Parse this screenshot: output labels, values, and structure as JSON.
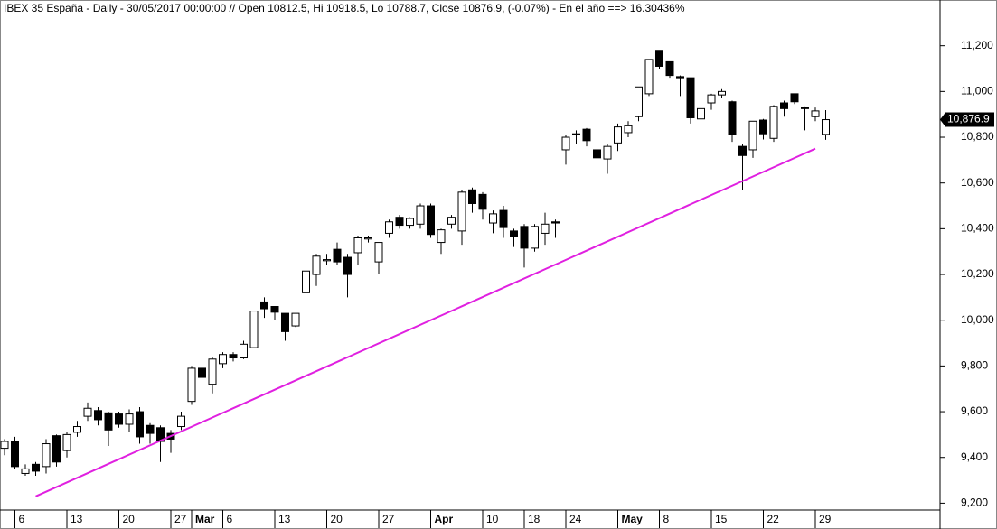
{
  "chart_data": {
    "type": "candlestick",
    "title": "IBEX 35 España - Daily - 30/05/2017 00:00:00 // Open 10812.5, Hi 10918.5, Lo 10788.7, Close 10876.9, (-0.07%) - En el año ==> 16.30436%",
    "categories": [
      null,
      "6",
      null,
      null,
      null,
      null,
      "13",
      null,
      null,
      null,
      null,
      "20",
      null,
      null,
      null,
      null,
      "27",
      null,
      "Mar",
      null,
      null,
      "6",
      null,
      null,
      null,
      null,
      "13",
      null,
      null,
      null,
      null,
      "20",
      null,
      null,
      null,
      null,
      "27",
      null,
      null,
      null,
      null,
      "Apr",
      null,
      null,
      null,
      null,
      "10",
      null,
      null,
      null,
      "18",
      null,
      null,
      null,
      "24",
      null,
      null,
      null,
      null,
      "May",
      null,
      null,
      null,
      "8",
      null,
      null,
      null,
      null,
      "15",
      null,
      null,
      null,
      null,
      "22",
      null,
      null,
      null,
      null,
      "29",
      null
    ],
    "open": [
      9440,
      9470,
      9330,
      9370,
      9360,
      9495,
      9430,
      9510,
      9580,
      9605,
      9595,
      9590,
      9545,
      9600,
      9540,
      9530,
      9505,
      9535,
      9645,
      9790,
      9720,
      9810,
      9850,
      9835,
      9880,
      10080,
      10060,
      10030,
      9975,
      10120,
      10200,
      10260,
      10310,
      10275,
      10295,
      10355,
      10255,
      10380,
      10450,
      10415,
      10420,
      10500,
      10340,
      10420,
      10390,
      10570,
      10550,
      10425,
      10480,
      10390,
      10410,
      10315,
      10380,
      10430,
      10745,
      10815,
      10835,
      10745,
      10705,
      10775,
      10820,
      10890,
      10990,
      11180,
      11130,
      11065,
      11060,
      10880,
      10950,
      10985,
      10955,
      10760,
      10745,
      10875,
      10795,
      10950,
      10990,
      10930,
      10890,
      10812.5
    ],
    "high": [
      9480,
      9490,
      9370,
      9380,
      9480,
      9500,
      9510,
      9560,
      9640,
      9620,
      9600,
      9600,
      9610,
      9620,
      9550,
      9540,
      9520,
      9600,
      9800,
      9800,
      9840,
      9860,
      9860,
      9910,
      10040,
      10100,
      10060,
      10030,
      10030,
      10220,
      10290,
      10290,
      10340,
      10290,
      10370,
      10370,
      10340,
      10440,
      10460,
      10450,
      10510,
      10510,
      10400,
      10460,
      10570,
      10580,
      10560,
      10480,
      10500,
      10400,
      10420,
      10420,
      10470,
      10440,
      10810,
      10830,
      10840,
      10760,
      10770,
      10860,
      10870,
      11020,
      11140,
      11180,
      11130,
      11070,
      11060,
      10940,
      10990,
      11010,
      10960,
      10770,
      10870,
      10880,
      10940,
      10960,
      10990,
      10935,
      10930,
      10918.5
    ],
    "low": [
      9410,
      9350,
      9320,
      9320,
      9330,
      9360,
      9400,
      9490,
      9560,
      9540,
      9450,
      9530,
      9510,
      9460,
      9460,
      9380,
      9420,
      9520,
      9630,
      9740,
      9680,
      9790,
      9820,
      9830,
      9880,
      10010,
      10000,
      9910,
      9970,
      10080,
      10150,
      10240,
      10240,
      10100,
      10240,
      10340,
      10200,
      10360,
      10400,
      10400,
      10400,
      10360,
      10290,
      10400,
      10330,
      10470,
      10440,
      10380,
      10360,
      10320,
      10230,
      10300,
      10330,
      10360,
      10680,
      10770,
      10760,
      10680,
      10640,
      10740,
      10800,
      10870,
      10980,
      11100,
      11060,
      10980,
      10860,
      10870,
      10920,
      10970,
      10780,
      10570,
      10710,
      10790,
      10780,
      10890,
      10945,
      10830,
      10870,
      10788.7
    ],
    "close": [
      9470,
      9360,
      9350,
      9340,
      9460,
      9380,
      9500,
      9535,
      9615,
      9565,
      9520,
      9545,
      9590,
      9490,
      9505,
      9470,
      9480,
      9580,
      9790,
      9750,
      9830,
      9850,
      9835,
      9895,
      10040,
      10050,
      10035,
      9950,
      10030,
      10215,
      10280,
      10265,
      10255,
      10200,
      10360,
      10360,
      10340,
      10430,
      10415,
      10445,
      10500,
      10375,
      10395,
      10450,
      10560,
      10510,
      10485,
      10465,
      10405,
      10365,
      10315,
      10410,
      10420,
      10425,
      10800,
      10810,
      10785,
      10710,
      10760,
      10845,
      10850,
      11020,
      11140,
      11110,
      11070,
      11060,
      10885,
      10925,
      10985,
      11000,
      10810,
      10720,
      10870,
      10815,
      10935,
      10925,
      10955,
      10925,
      10915,
      10876.9
    ],
    "last_close_label": "10,876.9",
    "trendline": {
      "x": [
        3,
        78
      ],
      "values": [
        9230,
        10750
      ],
      "color": "#e020e0"
    },
    "up_color": "#ffffff",
    "down_color": "#000000",
    "ylim": [
      9170,
      11400
    ],
    "yticks": [
      {
        "value": 9200,
        "label": "9,200"
      },
      {
        "value": 9400,
        "label": "9,400"
      },
      {
        "value": 9600,
        "label": "9,600"
      },
      {
        "value": 9800,
        "label": "9,800"
      },
      {
        "value": 10000,
        "label": "10,000"
      },
      {
        "value": 10200,
        "label": "10,200"
      },
      {
        "value": 10400,
        "label": "10,400"
      },
      {
        "value": 10600,
        "label": "10,600"
      },
      {
        "value": 10800,
        "label": "10,800"
      },
      {
        "value": 11000,
        "label": "11,000"
      },
      {
        "value": 11200,
        "label": "11,200"
      }
    ]
  }
}
